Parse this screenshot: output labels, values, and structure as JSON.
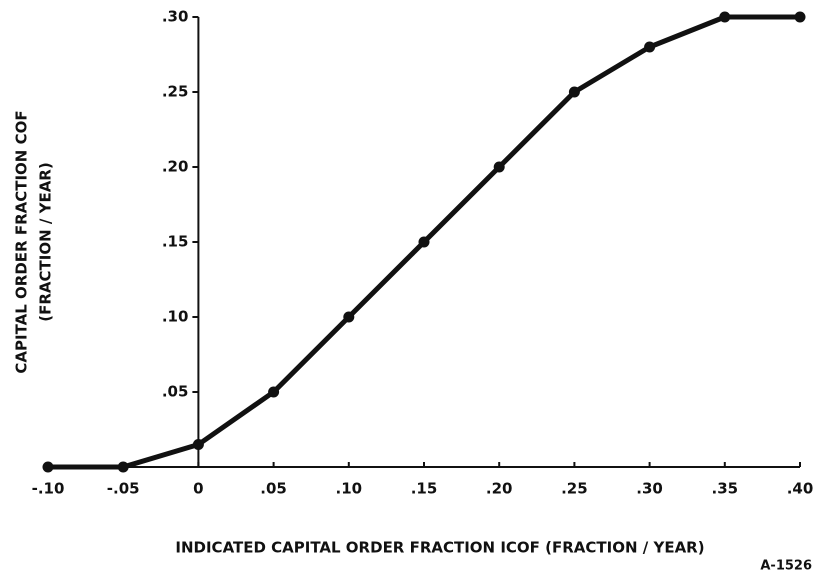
{
  "chart_data": {
    "type": "line",
    "xlabel": "INDICATED CAPITAL ORDER FRACTION  ICOF   (FRACTION / YEAR)",
    "ylabel": [
      "CAPITAL ORDER FRACTION  COF",
      "(FRACTION / YEAR)"
    ],
    "annotation": "A-1526",
    "x": [
      -0.1,
      -0.05,
      0,
      0.05,
      0.1,
      0.15,
      0.2,
      0.25,
      0.3,
      0.35,
      0.4
    ],
    "series": [
      {
        "name": "COF",
        "color": "#111111",
        "values": [
          0,
          0,
          0.015,
          0.05,
          0.1,
          0.15,
          0.2,
          0.25,
          0.28,
          0.3,
          0.3
        ]
      }
    ],
    "xlim": [
      -0.1,
      0.4
    ],
    "xticks": [
      {
        "value": -0.1,
        "label": "-.10"
      },
      {
        "value": -0.05,
        "label": "-.05"
      },
      0,
      {
        "value": 0.05,
        "label": ".05"
      },
      {
        "value": 0.1,
        "label": ".10"
      },
      {
        "value": 0.15,
        "label": ".15"
      },
      {
        "value": 0.2,
        "label": ".20"
      },
      {
        "value": 0.25,
        "label": ".25"
      },
      {
        "value": 0.3,
        "label": ".30"
      },
      {
        "value": 0.35,
        "label": ".35"
      },
      {
        "value": 0.4,
        "label": ".40"
      }
    ],
    "ylim": [
      0,
      0.3
    ],
    "yticks": [
      {
        "value": 0.05,
        "label": ".05"
      },
      {
        "value": 0.1,
        "label": ".10"
      },
      {
        "value": 0.15,
        "label": ".15"
      },
      {
        "value": 0.2,
        "label": ".20"
      },
      {
        "value": 0.25,
        "label": ".25"
      },
      {
        "value": 0.3,
        "label": ".30"
      }
    ],
    "grid": false
  }
}
